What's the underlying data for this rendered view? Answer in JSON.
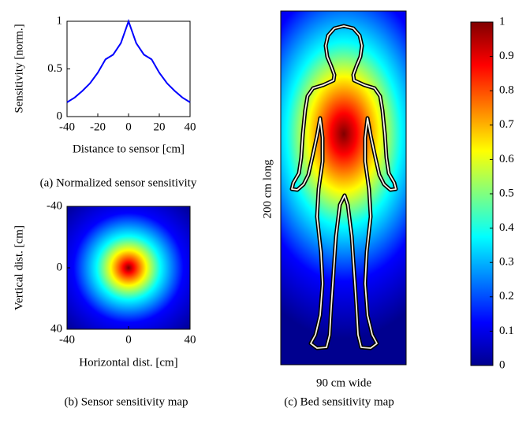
{
  "chart_data": [
    {
      "type": "line",
      "caption": "(a) Normalized sensor sensitivity",
      "xlabel": "Distance to sensor [cm]",
      "ylabel": "Sensitivity [norm.]",
      "x": [
        -40,
        -35,
        -30,
        -25,
        -20,
        -15,
        -10,
        -5,
        0,
        5,
        10,
        15,
        20,
        25,
        30,
        35,
        40
      ],
      "series": [
        {
          "color": "#0000ff",
          "values": [
            0.15,
            0.2,
            0.27,
            0.35,
            0.46,
            0.6,
            0.65,
            0.77,
            1,
            0.77,
            0.65,
            0.6,
            0.46,
            0.35,
            0.27,
            0.2,
            0.15
          ]
        }
      ],
      "xlim": [
        -40,
        40
      ],
      "ylim": [
        0,
        1
      ],
      "xticks": [
        -40,
        -20,
        0,
        20,
        40
      ],
      "yticks": [
        0,
        0.5,
        1
      ]
    },
    {
      "type": "heatmap",
      "caption": "(b) Sensor sensitivity map",
      "xlabel": "Horizontal dist. [cm]",
      "ylabel": "Vertical dist. [cm]",
      "xlim": [
        -40,
        40
      ],
      "ylim": [
        40,
        -40
      ],
      "xticks": [
        -40,
        0,
        40
      ],
      "yticks": [
        -40,
        0,
        40
      ],
      "colormap": "jet"
    },
    {
      "type": "bodymap",
      "caption": "(c) Bed sensitivity map",
      "xlabel": "90 cm wide",
      "ylabel": "200 cm long",
      "colormap": "jet",
      "colorbar_lim": [
        0,
        1
      ],
      "colorbar_ticks": [
        0,
        0.1,
        0.2,
        0.3,
        0.4,
        0.5,
        0.6,
        0.7,
        0.8,
        0.9,
        1
      ]
    }
  ]
}
